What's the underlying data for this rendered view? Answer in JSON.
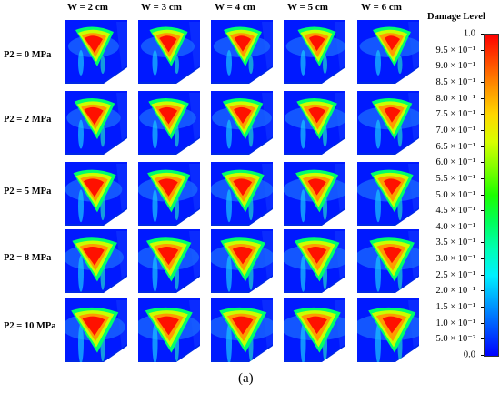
{
  "figure": {
    "columns": [
      "W = 2 cm",
      "W = 3 cm",
      "W = 4 cm",
      "W = 5 cm",
      "W = 6 cm"
    ],
    "rows": [
      "P2 = 0 MPa",
      "P2 = 2 MPa",
      "P2 = 5 MPa",
      "P2 = 8 MPa",
      "P2 = 10 MPa"
    ],
    "caption": "(a)"
  },
  "colorbar": {
    "title": "Damage Level",
    "ticks": [
      "1.0",
      "9.5 × 10⁻¹",
      "9.0 × 10⁻¹",
      "8.5 × 10⁻¹",
      "8.0 × 10⁻¹",
      "7.5 × 10⁻¹",
      "7.0 × 10⁻¹",
      "6.5 × 10⁻¹",
      "6.0 × 10⁻¹",
      "5.5 × 10⁻¹",
      "5.0 × 10⁻¹",
      "4.5 × 10⁻¹",
      "4.0 × 10⁻¹",
      "3.5 × 10⁻¹",
      "3.0 × 10⁻¹",
      "2.5 × 10⁻¹",
      "2.0 × 10⁻¹",
      "1.5 × 10⁻¹",
      "1.0 × 10⁻¹",
      "5.0 × 10⁻²",
      "0.0"
    ],
    "colors": [
      "#ff0000",
      "#ff4a00",
      "#ff9500",
      "#ffd800",
      "#d8ff00",
      "#7fff00",
      "#1bff00",
      "#00ff5a",
      "#00ffb4",
      "#00f0ff",
      "#00a0ff",
      "#0050ff",
      "#0000ff"
    ]
  }
}
